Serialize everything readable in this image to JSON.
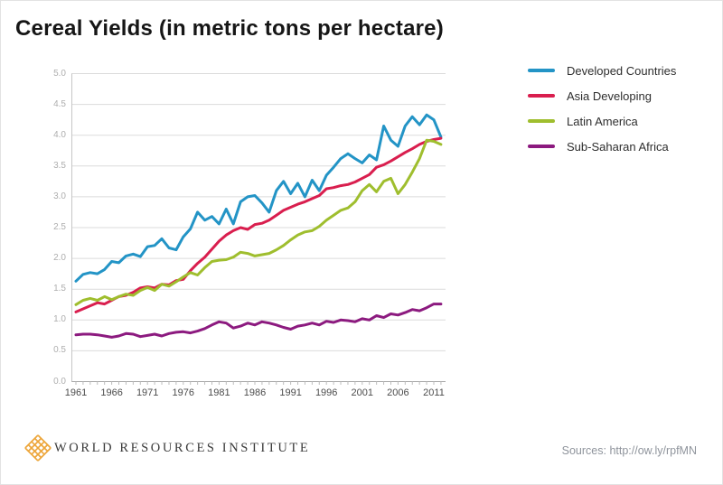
{
  "page": {
    "title": "Cereal Yields (in metric tons per hectare)"
  },
  "chart_data": {
    "type": "line",
    "title": "Cereal Yields (in metric tons per hectare)",
    "xlabel": "",
    "ylabel": "",
    "x_start_year": 1961,
    "x_end_year": 2012,
    "x_tick_years": [
      1961,
      1966,
      1971,
      1976,
      1981,
      1986,
      1991,
      1996,
      2001,
      2006,
      2011
    ],
    "y_ticks": [
      0.0,
      0.5,
      1.0,
      1.5,
      2.0,
      2.5,
      3.0,
      3.5,
      4.0,
      4.5,
      5.0
    ],
    "ylim": [
      0,
      5
    ],
    "grid": true,
    "legend_position": "top-right",
    "series": [
      {
        "name": "Developed Countries",
        "color": "#2394c6",
        "values": [
          1.63,
          1.74,
          1.77,
          1.75,
          1.82,
          1.95,
          1.93,
          2.04,
          2.07,
          2.03,
          2.19,
          2.21,
          2.32,
          2.17,
          2.14,
          2.35,
          2.48,
          2.75,
          2.62,
          2.68,
          2.56,
          2.8,
          2.56,
          2.92,
          3.0,
          3.02,
          2.9,
          2.75,
          3.1,
          3.25,
          3.05,
          3.22,
          3.0,
          3.27,
          3.1,
          3.35,
          3.48,
          3.62,
          3.7,
          3.62,
          3.55,
          3.68,
          3.6,
          4.15,
          3.92,
          3.82,
          4.15,
          4.3,
          4.17,
          4.33,
          4.25,
          3.97
        ]
      },
      {
        "name": "Asia Developing",
        "color": "#d91e4e",
        "values": [
          1.13,
          1.18,
          1.23,
          1.28,
          1.26,
          1.32,
          1.38,
          1.4,
          1.45,
          1.52,
          1.54,
          1.52,
          1.58,
          1.57,
          1.64,
          1.66,
          1.8,
          1.92,
          2.02,
          2.15,
          2.28,
          2.38,
          2.45,
          2.5,
          2.47,
          2.55,
          2.57,
          2.62,
          2.7,
          2.78,
          2.83,
          2.88,
          2.92,
          2.97,
          3.02,
          3.13,
          3.15,
          3.18,
          3.2,
          3.24,
          3.3,
          3.36,
          3.48,
          3.52,
          3.58,
          3.65,
          3.72,
          3.78,
          3.85,
          3.9,
          3.93,
          3.95
        ]
      },
      {
        "name": "Latin America",
        "color": "#9fbe2e",
        "values": [
          1.25,
          1.32,
          1.35,
          1.32,
          1.38,
          1.33,
          1.38,
          1.42,
          1.4,
          1.48,
          1.53,
          1.48,
          1.58,
          1.55,
          1.62,
          1.7,
          1.77,
          1.73,
          1.85,
          1.95,
          1.97,
          1.98,
          2.02,
          2.1,
          2.08,
          2.04,
          2.06,
          2.08,
          2.14,
          2.21,
          2.3,
          2.38,
          2.43,
          2.45,
          2.52,
          2.62,
          2.7,
          2.78,
          2.82,
          2.92,
          3.1,
          3.2,
          3.08,
          3.25,
          3.3,
          3.05,
          3.2,
          3.4,
          3.62,
          3.92,
          3.9,
          3.85
        ]
      },
      {
        "name": "Sub-Saharan Africa",
        "color": "#8c1a7f",
        "values": [
          0.76,
          0.77,
          0.77,
          0.76,
          0.74,
          0.72,
          0.74,
          0.78,
          0.77,
          0.73,
          0.75,
          0.77,
          0.74,
          0.78,
          0.8,
          0.81,
          0.79,
          0.82,
          0.86,
          0.92,
          0.97,
          0.95,
          0.87,
          0.9,
          0.95,
          0.92,
          0.97,
          0.95,
          0.92,
          0.88,
          0.85,
          0.9,
          0.92,
          0.95,
          0.92,
          0.98,
          0.96,
          1.0,
          0.99,
          0.97,
          1.02,
          1.0,
          1.07,
          1.04,
          1.1,
          1.08,
          1.12,
          1.17,
          1.15,
          1.2,
          1.26,
          1.26
        ]
      }
    ],
    "style": {
      "grid_color": "#dbdbdb",
      "axis_color": "#a8a8a8",
      "tick_color": "#bdbdbd",
      "plot_left_border_color": "#c6c6c6"
    }
  },
  "footer": {
    "org_name": "WORLD RESOURCES INSTITUTE",
    "sources_text": "Sources: http://ow.ly/rpfMN",
    "logo_color": "#eda63b"
  }
}
